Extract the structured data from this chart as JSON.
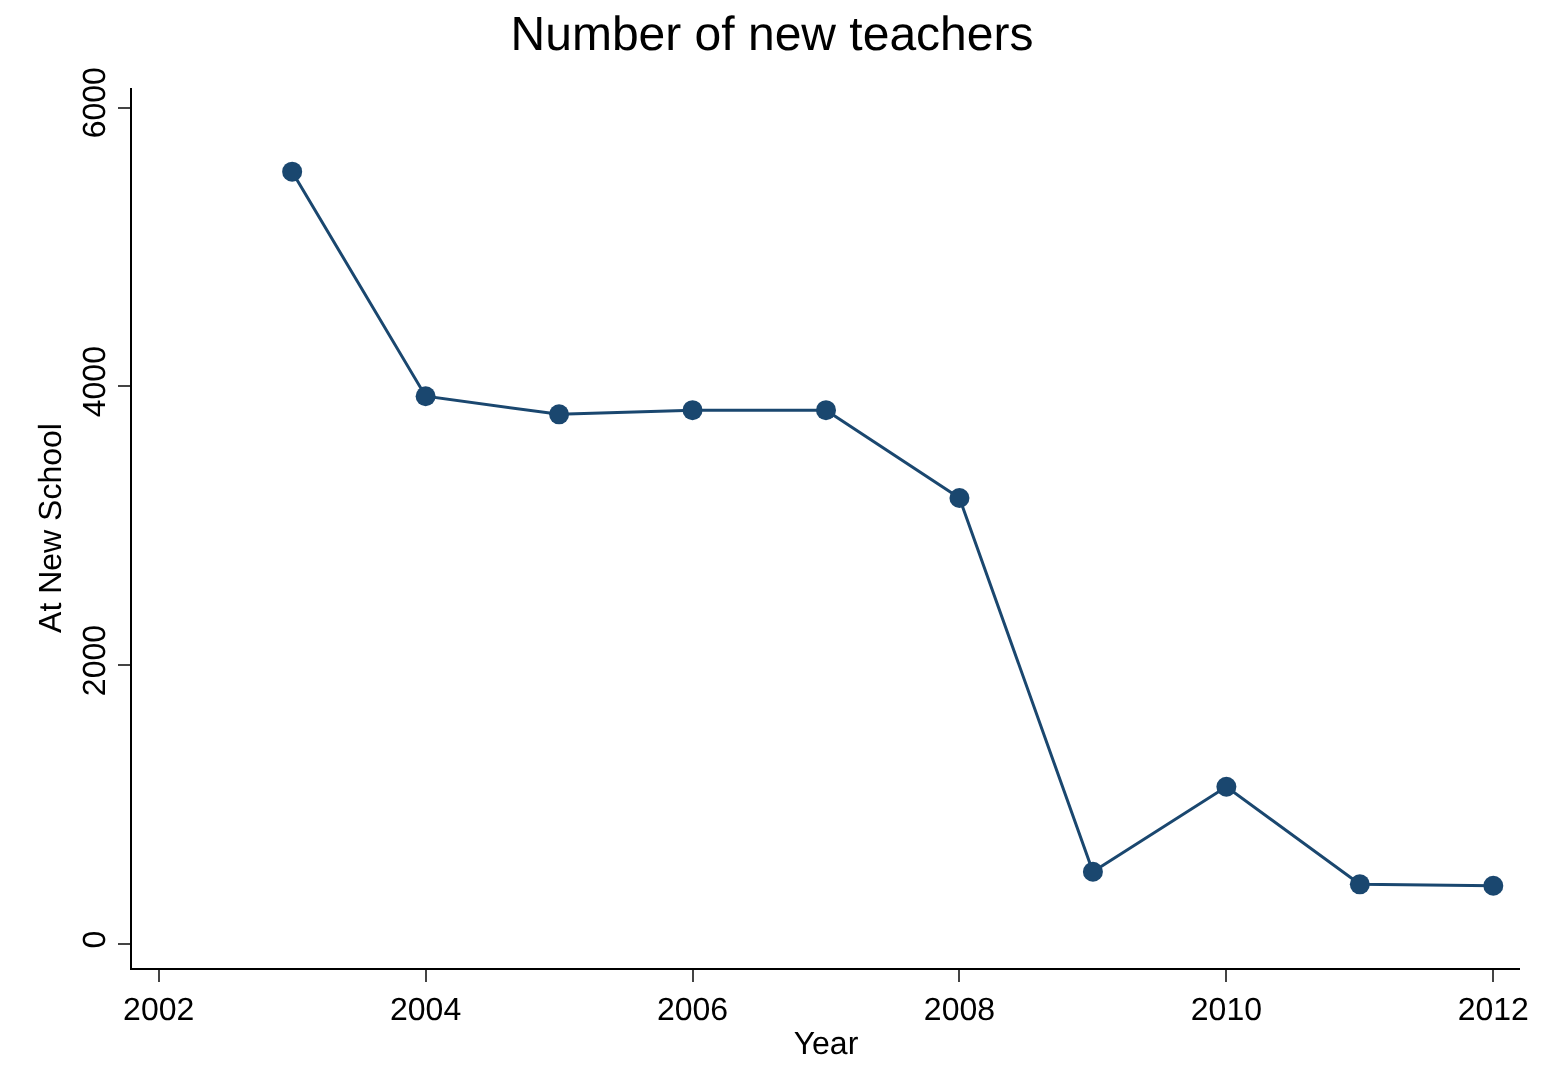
{
  "chart_data": {
    "type": "line",
    "title": "Number of new teachers",
    "xlabel": "Year",
    "ylabel": "At New School",
    "x": [
      2003,
      2004,
      2005,
      2006,
      2007,
      2008,
      2009,
      2010,
      2011,
      2012
    ],
    "series": [
      {
        "color": "#1a476f",
        "values": [
          5540,
          3930,
          3800,
          3830,
          3830,
          3200,
          520,
          1130,
          430,
          420
        ]
      }
    ],
    "xlim": [
      2001.8,
      2012.2
    ],
    "xticks": [
      2002,
      2004,
      2006,
      2008,
      2010,
      2012
    ],
    "ylim": [
      -170,
      6140
    ],
    "yticks": [
      0,
      2000,
      4000,
      6000
    ],
    "grid": false,
    "marker": "circle",
    "line_style": "solid"
  }
}
